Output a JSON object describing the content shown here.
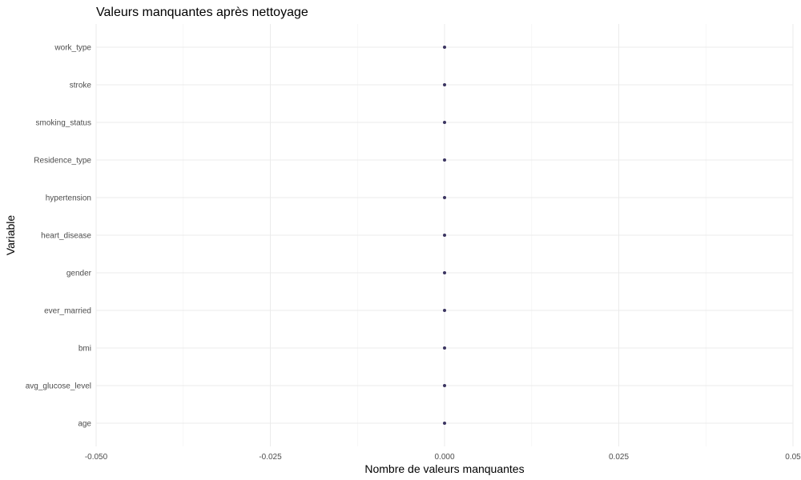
{
  "chart_data": {
    "type": "scatter",
    "title": "Valeurs manquantes après nettoyage",
    "xlabel": "Nombre de valeurs manquantes",
    "ylabel": "Variable",
    "xlim": [
      -0.05,
      0.05
    ],
    "x_ticks": [
      -0.05,
      -0.025,
      0,
      0.025,
      0.05
    ],
    "x_tick_labels": [
      "-0.050",
      "-0.025",
      "0.000",
      "0.025",
      "0.05"
    ],
    "categories": [
      "age",
      "avg_glucose_level",
      "bmi",
      "ever_married",
      "gender",
      "heart_disease",
      "hypertension",
      "Residence_type",
      "smoking_status",
      "stroke",
      "work_type"
    ],
    "points": [
      {
        "variable": "age",
        "value": 0
      },
      {
        "variable": "avg_glucose_level",
        "value": 0
      },
      {
        "variable": "bmi",
        "value": 0
      },
      {
        "variable": "ever_married",
        "value": 0
      },
      {
        "variable": "gender",
        "value": 0
      },
      {
        "variable": "heart_disease",
        "value": 0
      },
      {
        "variable": "hypertension",
        "value": 0
      },
      {
        "variable": "Residence_type",
        "value": 0
      },
      {
        "variable": "smoking_status",
        "value": 0
      },
      {
        "variable": "stroke",
        "value": 0
      },
      {
        "variable": "work_type",
        "value": 0
      }
    ],
    "grid": true,
    "point_color": "#3b3561"
  }
}
